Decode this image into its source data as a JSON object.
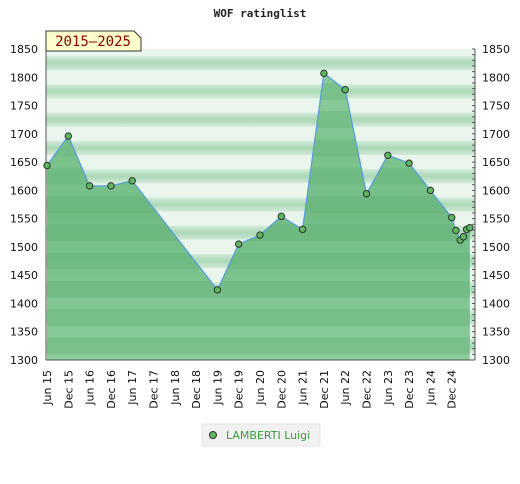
{
  "chart_data": {
    "type": "area",
    "title": "WOF ratinglist",
    "period_badge": "2015–2025",
    "ylim": [
      1300,
      1850
    ],
    "y_ticks": [
      1300,
      1350,
      1400,
      1450,
      1500,
      1550,
      1600,
      1650,
      1700,
      1750,
      1800,
      1850
    ],
    "x_tick_labels": [
      "Jun 15",
      "Dec 15",
      "Jun 16",
      "Dec 16",
      "Jun 17",
      "Dec 17",
      "Jun 18",
      "Dec 18",
      "Jun 19",
      "Dec 19",
      "Jun 20",
      "Dec 20",
      "Jun 21",
      "Dec 21",
      "Jun 22",
      "Dec 22",
      "Jun 23",
      "Dec 23",
      "Jun 24",
      "Dec 24"
    ],
    "grid": false,
    "legend_position": "bottom",
    "colors": {
      "line": "#5aa0d8",
      "marker": "#5cb85c",
      "fill": "#7cc08e",
      "band_light": "#eaf5ee",
      "legend_text": "#3a9a3a"
    },
    "series": [
      {
        "name": "LAMBERTI Luigi",
        "points": [
          {
            "x": 0.0,
            "y": 1644
          },
          {
            "x": 1.0,
            "y": 1696
          },
          {
            "x": 2.0,
            "y": 1608
          },
          {
            "x": 3.0,
            "y": 1608
          },
          {
            "x": 4.0,
            "y": 1617
          },
          {
            "x": 8.0,
            "y": 1424
          },
          {
            "x": 9.0,
            "y": 1505
          },
          {
            "x": 10.0,
            "y": 1521
          },
          {
            "x": 11.0,
            "y": 1554
          },
          {
            "x": 12.0,
            "y": 1531
          },
          {
            "x": 13.0,
            "y": 1807
          },
          {
            "x": 14.0,
            "y": 1778
          },
          {
            "x": 15.0,
            "y": 1594
          },
          {
            "x": 16.0,
            "y": 1662
          },
          {
            "x": 17.0,
            "y": 1648
          },
          {
            "x": 18.0,
            "y": 1600
          },
          {
            "x": 19.0,
            "y": 1552
          },
          {
            "x": 19.2,
            "y": 1529
          },
          {
            "x": 19.4,
            "y": 1512
          },
          {
            "x": 19.55,
            "y": 1518
          },
          {
            "x": 19.7,
            "y": 1531
          },
          {
            "x": 19.85,
            "y": 1534
          }
        ]
      }
    ]
  }
}
